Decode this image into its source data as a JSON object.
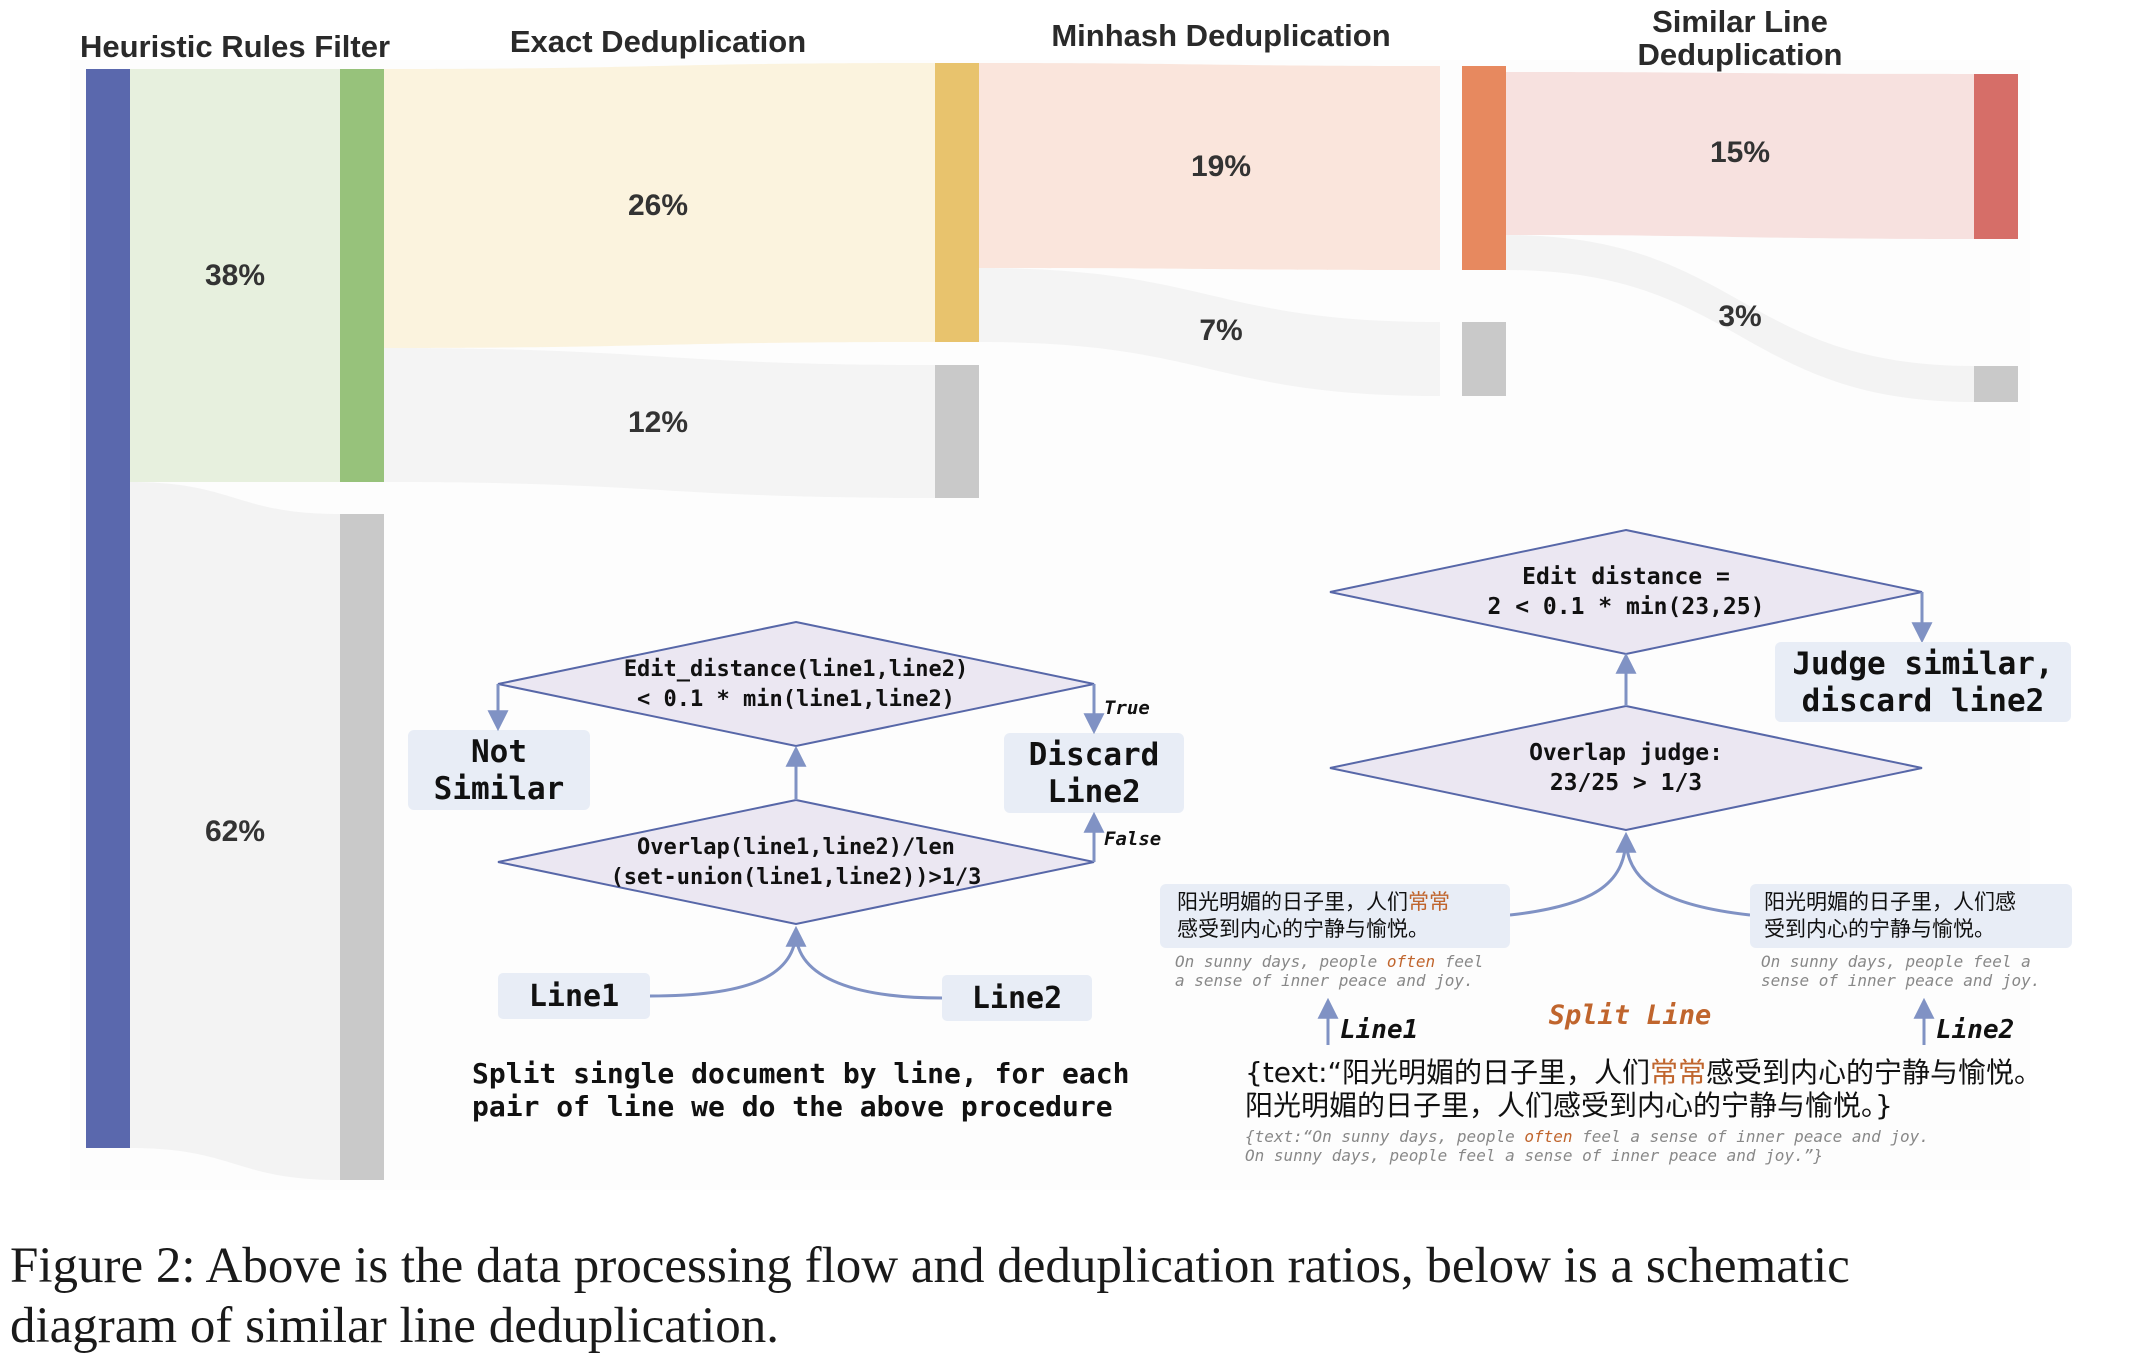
{
  "colors": {
    "blue": "#5a68ad",
    "green": "#97c27b",
    "yellow": "#e8c36d",
    "orange": "#e7895f",
    "red": "#d66e68",
    "gray": "#c9c9c9",
    "diamond_fill": "#ebe7f2",
    "diamond_stroke": "#5767a8",
    "box_fill": "#e8edf6",
    "highlight": "#c0652d"
  },
  "sankey": {
    "stages": [
      {
        "label": "Heuristic Rules Filter"
      },
      {
        "label": "Exact Deduplication"
      },
      {
        "label": "Minhash Deduplication"
      },
      {
        "label_lines": [
          "Similar Line",
          "Deduplication"
        ]
      }
    ],
    "flows": [
      {
        "label": "38%"
      },
      {
        "label": "62%"
      },
      {
        "label": "26%"
      },
      {
        "label": "12%"
      },
      {
        "label": "19%"
      },
      {
        "label": "7%"
      },
      {
        "label": "15%"
      },
      {
        "label": "3%"
      }
    ]
  },
  "left_flow": {
    "decision_top": [
      "Edit_distance(line1,line2)",
      "< 0.1 * min(line1,line2)"
    ],
    "decision_bottom": [
      "Overlap(line1,line2)/len",
      "(set-union(line1,line2))>1/3"
    ],
    "not_similar": [
      "Not",
      "Similar"
    ],
    "discard": [
      "Discard",
      "Line2"
    ],
    "true_label": "True",
    "false_label": "False",
    "line1": "Line1",
    "line2": "Line2",
    "note": [
      "Split single document by line, for each",
      "pair of line we do the above procedure"
    ]
  },
  "right_flow": {
    "decision_top": [
      "Edit distance =",
      "2 < 0.1 * min(23,25)"
    ],
    "decision_bottom": [
      "Overlap judge:",
      "23/25 > 1/3"
    ],
    "judge": [
      "Judge similar,",
      "discard line2"
    ],
    "line1_cn": {
      "l1a": "阳光明媚的日子里，人们",
      "l1b": "常常",
      "l2": "感受到内心的宁静与愉悦。"
    },
    "line1_en": {
      "l1a": "On sunny days, people ",
      "l1b": "often",
      "l1c": " feel",
      "l2": "a sense of inner peace and joy."
    },
    "line2_cn": [
      "阳光明媚的日子里，人们感",
      "受到内心的宁静与愉悦。"
    ],
    "line2_en": [
      "On sunny days, people feel a",
      "sense of inner peace and joy."
    ],
    "line1_label": "Line1",
    "line2_label": "Line2",
    "split_label": "Split Line",
    "doc_cn": {
      "a": "{text:“阳光明媚的日子里，人们",
      "b": "常常",
      "c": "感受到内心的宁静与愉悦。",
      "d": "阳光明媚的日子里，人们感受到内心的宁静与愉悦。}"
    },
    "doc_en": {
      "a": "{text:“On sunny days, people ",
      "b": "often",
      "c": " feel a sense of inner peace and joy.",
      "d": "On sunny days, people feel a sense of inner peace and joy.”}"
    }
  },
  "caption": [
    "Figure 2: Above is the data processing flow and deduplication ratios, below is a schematic",
    "diagram of similar line deduplication."
  ]
}
